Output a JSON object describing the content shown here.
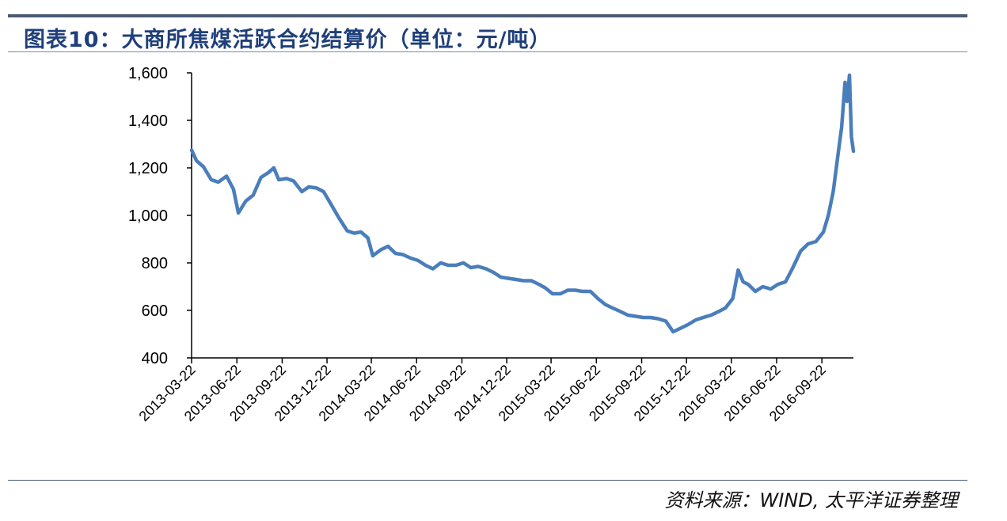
{
  "title": "图表10：大商所焦煤活跃合约结算价（单位：元/吨）",
  "source": "资料来源：WIND, 太平洋证券整理",
  "colors": {
    "series": "#4a7ebb",
    "rule": "#4b5a78",
    "title": "#1f3f7a"
  },
  "chart_data": {
    "type": "line",
    "title": "大商所焦煤活跃合约结算价",
    "ylabel": "元/吨",
    "xlabel": "",
    "ylim": [
      400,
      1600
    ],
    "yticks": [
      400,
      600,
      800,
      1000,
      1200,
      1400,
      1600
    ],
    "ytick_labels": [
      "400",
      "600",
      "800",
      "1,000",
      "1,200",
      "1,400",
      "1,600"
    ],
    "x_start": "2013-03-22",
    "x_end": "2016-11-25",
    "xticks": [
      "2013-03-22",
      "2013-06-22",
      "2013-09-22",
      "2013-12-22",
      "2014-03-22",
      "2014-06-22",
      "2014-09-22",
      "2014-12-22",
      "2015-03-22",
      "2015-06-22",
      "2015-09-22",
      "2015-12-22",
      "2016-03-22",
      "2016-06-22",
      "2016-09-22"
    ],
    "series": [
      {
        "name": "焦煤活跃合约结算价",
        "x": [
          "2013-03-22",
          "2013-04-01",
          "2013-04-15",
          "2013-05-01",
          "2013-05-15",
          "2013-06-01",
          "2013-06-15",
          "2013-06-25",
          "2013-07-10",
          "2013-07-25",
          "2013-08-10",
          "2013-08-25",
          "2013-09-05",
          "2013-09-15",
          "2013-10-01",
          "2013-10-15",
          "2013-11-01",
          "2013-11-15",
          "2013-12-01",
          "2013-12-15",
          "2014-01-01",
          "2014-01-15",
          "2014-02-01",
          "2014-02-15",
          "2014-03-01",
          "2014-03-15",
          "2014-03-25",
          "2014-04-10",
          "2014-04-25",
          "2014-05-10",
          "2014-05-25",
          "2014-06-10",
          "2014-06-25",
          "2014-07-10",
          "2014-07-25",
          "2014-08-10",
          "2014-08-25",
          "2014-09-10",
          "2014-09-25",
          "2014-10-10",
          "2014-10-25",
          "2014-11-10",
          "2014-11-25",
          "2014-12-10",
          "2014-12-25",
          "2015-01-10",
          "2015-01-25",
          "2015-02-10",
          "2015-02-25",
          "2015-03-10",
          "2015-03-25",
          "2015-04-10",
          "2015-04-25",
          "2015-05-10",
          "2015-05-25",
          "2015-06-10",
          "2015-06-25",
          "2015-07-10",
          "2015-07-25",
          "2015-08-10",
          "2015-08-25",
          "2015-09-10",
          "2015-09-25",
          "2015-10-10",
          "2015-10-25",
          "2015-11-10",
          "2015-11-25",
          "2015-12-10",
          "2015-12-25",
          "2016-01-10",
          "2016-01-25",
          "2016-02-10",
          "2016-02-25",
          "2016-03-10",
          "2016-03-25",
          "2016-04-05",
          "2016-04-15",
          "2016-04-25",
          "2016-05-10",
          "2016-05-25",
          "2016-06-10",
          "2016-06-25",
          "2016-07-10",
          "2016-07-25",
          "2016-08-10",
          "2016-08-25",
          "2016-09-10",
          "2016-09-25",
          "2016-10-05",
          "2016-10-15",
          "2016-10-25",
          "2016-11-01",
          "2016-11-08",
          "2016-11-12",
          "2016-11-17",
          "2016-11-21",
          "2016-11-25"
        ],
        "values": [
          1275,
          1230,
          1205,
          1150,
          1140,
          1165,
          1110,
          1010,
          1060,
          1085,
          1160,
          1180,
          1200,
          1150,
          1155,
          1145,
          1100,
          1120,
          1115,
          1100,
          1040,
          990,
          935,
          925,
          930,
          905,
          830,
          855,
          870,
          840,
          835,
          820,
          810,
          790,
          775,
          800,
          790,
          790,
          800,
          780,
          785,
          775,
          760,
          740,
          735,
          730,
          725,
          725,
          710,
          695,
          670,
          670,
          685,
          685,
          680,
          680,
          650,
          625,
          610,
          595,
          580,
          575,
          570,
          570,
          565,
          555,
          510,
          525,
          540,
          560,
          570,
          580,
          595,
          610,
          650,
          770,
          720,
          710,
          680,
          700,
          690,
          710,
          720,
          780,
          850,
          880,
          890,
          930,
          1000,
          1100,
          1260,
          1370,
          1560,
          1480,
          1590,
          1330,
          1270
        ]
      }
    ]
  }
}
